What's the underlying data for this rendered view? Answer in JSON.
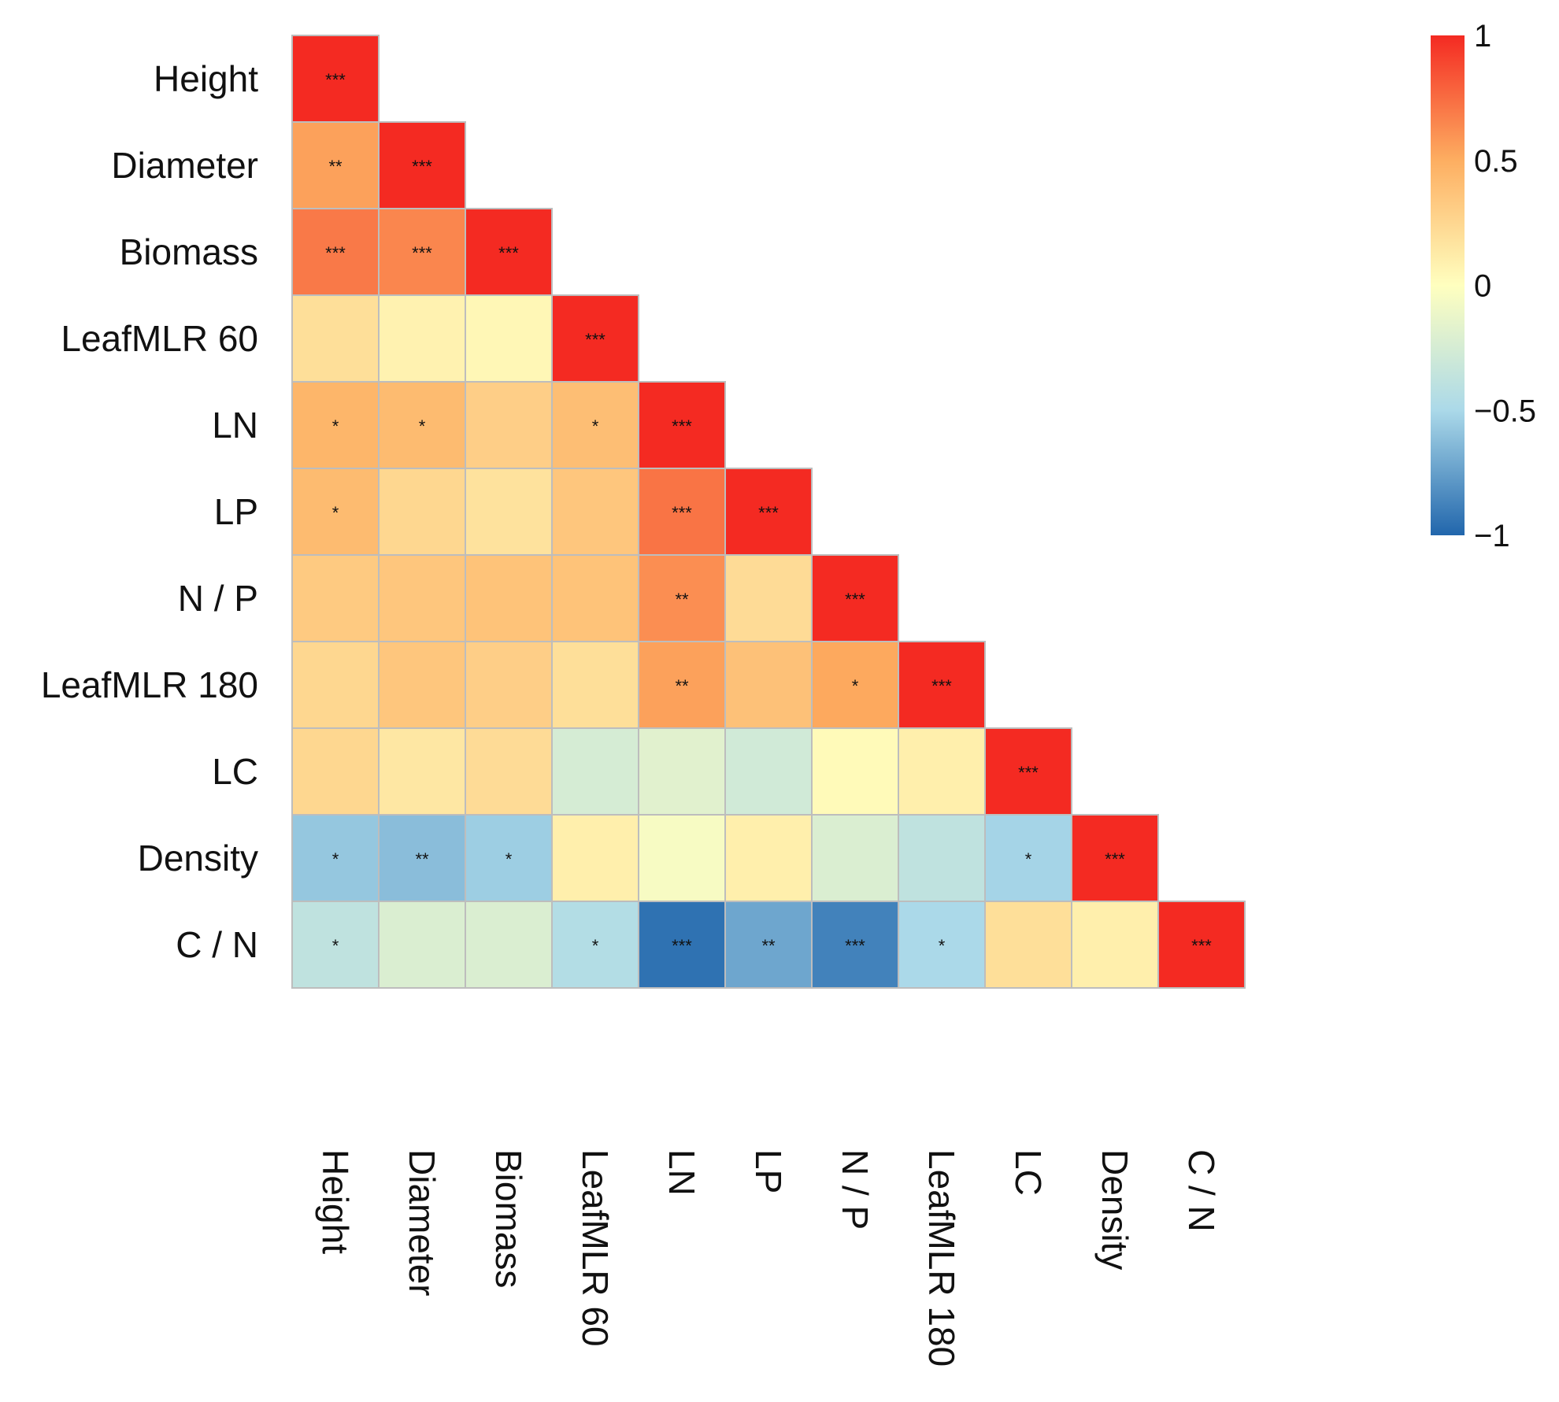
{
  "chart_data": {
    "type": "heatmap",
    "title": "",
    "variables": [
      "Height",
      "Diameter",
      "Biomass",
      "LeafMLR 60",
      "LN",
      "LP",
      "N / P",
      "LeafMLR 180",
      "LC",
      "Density",
      "C / N"
    ],
    "matrix": [
      [
        1.0
      ],
      [
        0.55,
        1.0
      ],
      [
        0.7,
        0.65,
        1.0
      ],
      [
        0.2,
        0.08,
        0.05,
        1.0
      ],
      [
        0.45,
        0.42,
        0.3,
        0.4,
        1.0
      ],
      [
        0.42,
        0.25,
        0.18,
        0.35,
        0.72,
        1.0
      ],
      [
        0.33,
        0.35,
        0.37,
        0.37,
        0.62,
        0.22,
        1.0
      ],
      [
        0.25,
        0.35,
        0.3,
        0.2,
        0.55,
        0.38,
        0.52,
        1.0
      ],
      [
        0.25,
        0.15,
        0.22,
        -0.25,
        -0.18,
        -0.28,
        0.03,
        0.1,
        1.0
      ],
      [
        -0.58,
        -0.62,
        -0.55,
        0.1,
        -0.05,
        0.1,
        -0.22,
        -0.38,
        -0.52,
        1.0
      ],
      [
        -0.38,
        -0.22,
        -0.22,
        -0.45,
        -0.95,
        -0.72,
        -0.88,
        -0.5,
        0.2,
        0.1,
        1.0
      ]
    ],
    "significance": [
      [
        "***"
      ],
      [
        "**",
        "***"
      ],
      [
        "***",
        "***",
        "***"
      ],
      [
        "",
        "",
        "",
        "***"
      ],
      [
        "*",
        "*",
        "",
        "*",
        "***"
      ],
      [
        "*",
        "",
        "",
        "",
        "***",
        "***"
      ],
      [
        "",
        "",
        "",
        "",
        "**",
        "",
        "***"
      ],
      [
        "",
        "",
        "",
        "",
        "**",
        "",
        "*",
        "***"
      ],
      [
        "",
        "",
        "",
        "",
        "",
        "",
        "",
        "",
        "***"
      ],
      [
        "*",
        "**",
        "*",
        "",
        "",
        "",
        "",
        "",
        "*",
        "***"
      ],
      [
        "*",
        "",
        "",
        "*",
        "***",
        "**",
        "***",
        "*",
        "",
        "",
        "***"
      ]
    ],
    "color_scale": {
      "min": -1,
      "max": 1,
      "ticks": [
        1,
        0.5,
        0,
        -0.5,
        -1
      ],
      "tick_labels": [
        "1",
        "0.5",
        "0",
        "−0.5",
        "−1"
      ],
      "low_color": "#2166ac",
      "mid_color": "#ffffbf",
      "high_color": "#f42a22"
    },
    "grid_line_color": "#bdbdbd"
  }
}
